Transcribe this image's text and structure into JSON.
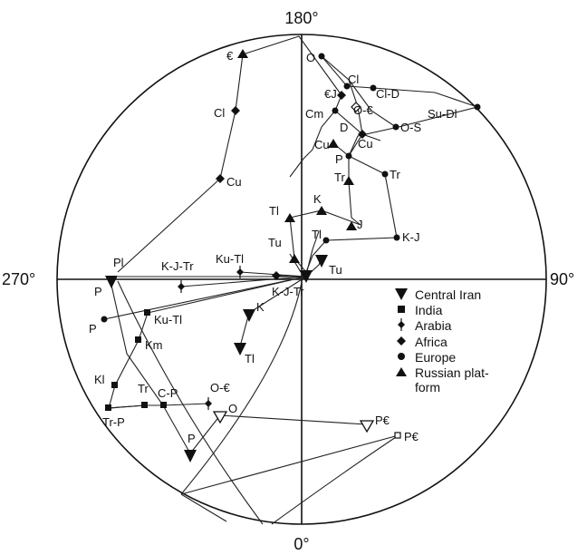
{
  "axis_labels": {
    "top": "180°",
    "bottom": "0°",
    "left": "270°",
    "right": "90°"
  },
  "legend": [
    {
      "symbol": "triangle-down",
      "text": "Central Iran"
    },
    {
      "symbol": "square",
      "text": "India"
    },
    {
      "symbol": "diamond-bar",
      "text": "Arabia"
    },
    {
      "symbol": "diamond",
      "text": "Africa"
    },
    {
      "symbol": "circle",
      "text": "Europe"
    },
    {
      "symbol": "triangle-up",
      "text": "Russian plat-"
    },
    {
      "symbol": "none",
      "text": "form"
    }
  ],
  "point_labels": [
    {
      "id": "l1",
      "text": "€"
    },
    {
      "id": "l2",
      "text": "O"
    },
    {
      "id": "l3",
      "text": "Cl"
    },
    {
      "id": "l4",
      "text": "€J"
    },
    {
      "id": "l5",
      "text": "O-€"
    },
    {
      "id": "l6",
      "text": "Cl-D"
    },
    {
      "id": "l7",
      "text": "Su-Dl"
    },
    {
      "id": "l8",
      "text": "Cm"
    },
    {
      "id": "l9",
      "text": "D"
    },
    {
      "id": "l10",
      "text": "O-S"
    },
    {
      "id": "l11",
      "text": "Cu"
    },
    {
      "id": "l12",
      "text": "Cu"
    },
    {
      "id": "l13",
      "text": "P"
    },
    {
      "id": "l14",
      "text": "Tr"
    },
    {
      "id": "l15",
      "text": "Tr"
    },
    {
      "id": "l16",
      "text": "Cl"
    },
    {
      "id": "l17",
      "text": "Cu"
    },
    {
      "id": "l18",
      "text": "K"
    },
    {
      "id": "l19",
      "text": "Tl"
    },
    {
      "id": "l20",
      "text": "J"
    },
    {
      "id": "l21",
      "text": "Tl"
    },
    {
      "id": "l22",
      "text": "K-J"
    },
    {
      "id": "l23",
      "text": "Tu"
    },
    {
      "id": "l24",
      "text": "Tu"
    },
    {
      "id": "l25",
      "text": "Pl"
    },
    {
      "id": "l26",
      "text": "K-J-Tr"
    },
    {
      "id": "l27",
      "text": "Ku-Tl"
    },
    {
      "id": "l28",
      "text": "P"
    },
    {
      "id": "l29",
      "text": "K-J-Tr"
    },
    {
      "id": "l30",
      "text": "P"
    },
    {
      "id": "l31",
      "text": "Ku-Tl"
    },
    {
      "id": "l32",
      "text": "K"
    },
    {
      "id": "l33",
      "text": "Km"
    },
    {
      "id": "l34",
      "text": "Tl"
    },
    {
      "id": "l35",
      "text": "Kl"
    },
    {
      "id": "l36",
      "text": "Tr"
    },
    {
      "id": "l37",
      "text": "C-P"
    },
    {
      "id": "l38",
      "text": "O-€"
    },
    {
      "id": "l39",
      "text": "Tr-P"
    },
    {
      "id": "l40",
      "text": "O"
    },
    {
      "id": "l41",
      "text": "P€"
    },
    {
      "id": "l42",
      "text": "P€"
    },
    {
      "id": "l43",
      "text": "P"
    }
  ],
  "colors": {
    "ink": "#111111",
    "background": "#ffffff"
  }
}
